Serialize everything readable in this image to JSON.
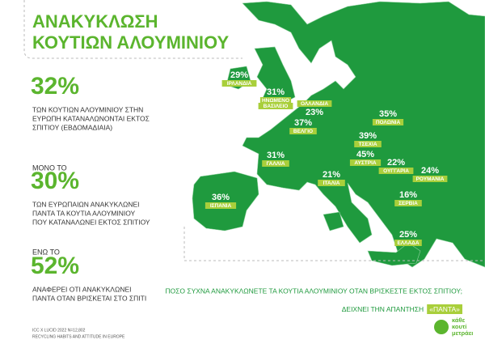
{
  "header": {
    "title": [
      "ΑΝΑΚΥΚΛΩΣΗ",
      "ΚΟΥΤΙΩΝ ΑΛΟΥΜΙΝΙΟΥ"
    ]
  },
  "stats": [
    {
      "value": "32%",
      "text": [
        "ΤΩΝ ΚΟΥΤΙΩΝ ΑΛΟΥΜΙΝΙΟΥ ΣΤΗΝ",
        "ΕΥΡΩΠΗ ΚΑΤΑΝΑΛΩΝΟΝΤΑΙ ΕΚΤΟΣ",
        "ΣΠΙΤΙΟΥ (ΕΒΔΟΜΑΔΙΑΙΑ)"
      ]
    },
    {
      "intro": "ΜΟΝΟ ΤΟ",
      "value": "30%",
      "text": [
        "ΤΩΝ ΕΥΡΩΠΑΙΩΝ ΑΝΑΚΥΚΛΩΝΕΙ",
        "ΠΑΝΤΑ ΤΑ ΚΟΥΤΙΑ ΑΛΟΥΜΙΝΙΟΥ",
        "ΠΟΥ ΚΑΤΑΝΑΛΩΝΕΙ ΕΚΤΟΣ ΣΠΙΤΙΟΥ"
      ]
    },
    {
      "intro": "ΕΝΩ ΤΟ",
      "value": "52%",
      "text": [
        "ΑΝΑΦΕΡΕΙ ΟΤΙ ΑΝΑΚΥΚΛΩΝΕΙ",
        "ΠΑΝΤΑ ΟΤΑΝ ΒΡΙΣΚΕΤΑΙ ΣΤΟ ΣΠΙΤΙ"
      ]
    }
  ],
  "countries": [
    {
      "value": "29%",
      "name": [
        "ΙΡΛΑΝΔΙΑ"
      ]
    },
    {
      "value": "31%",
      "name": [
        "ΗΝΩΜΕΝΟ",
        "ΒΑΣΙΛΕΙΟ"
      ]
    },
    {
      "value": "23%",
      "name": [
        "ΟΛΛΑΝΔΙΑ"
      ]
    },
    {
      "value": "37%",
      "name": [
        "ΒΕΛΓΙΟ"
      ]
    },
    {
      "value": "31%",
      "name": [
        "ΓΑΛΛΙΑ"
      ]
    },
    {
      "value": "36%",
      "name": [
        "ΙΣΠΑΝΙΑ"
      ]
    },
    {
      "value": "21%",
      "name": [
        "ΙΤΑΛΙΑ"
      ]
    },
    {
      "value": "45%",
      "name": [
        "ΑΥΣΤΡΙΑ"
      ]
    },
    {
      "value": "39%",
      "name": [
        "ΤΣΕΧΙΑ"
      ]
    },
    {
      "value": "35%",
      "name": [
        "ΠΟΛΩΝΙΑ"
      ]
    },
    {
      "value": "22%",
      "name": [
        "ΟΥΓΓΑΡΙΑ"
      ]
    },
    {
      "value": "24%",
      "name": [
        "ΡΟΥΜΑΝΙΑ"
      ]
    },
    {
      "value": "16%",
      "name": [
        "ΣΕΡΒΙΑ"
      ]
    },
    {
      "value": "25%",
      "name": [
        "ΕΛΛΑΔΑ"
      ]
    }
  ],
  "question": "ΠΟΣΟ ΣΥΧΝΑ ΑΝΑΚΥΚΛΩΝΕΤΕ ΤΑ ΚΟΥΤΙΑ ΑΛΟΥΜΙΝΙΟΥ ΟΤΑΝ ΒΡΙΣΚΕΣΤΕ ΕΚΤΟΣ ΣΠΙΤΙΟΥ;",
  "answer": {
    "text": "ΔΕΙΧΝΕΙ ΤΗΝ ΑΠΑΝΤΗΣΗ",
    "highlight": "«ΠΑΝΤΑ»"
  },
  "source": [
    "ICC X LUCID 2022 N=12,802",
    "RECYCLING HABITS AND ATTITUDE IN EUROPE"
  ],
  "logo": [
    "κάθε",
    "κουτί",
    "μετράει"
  ]
}
